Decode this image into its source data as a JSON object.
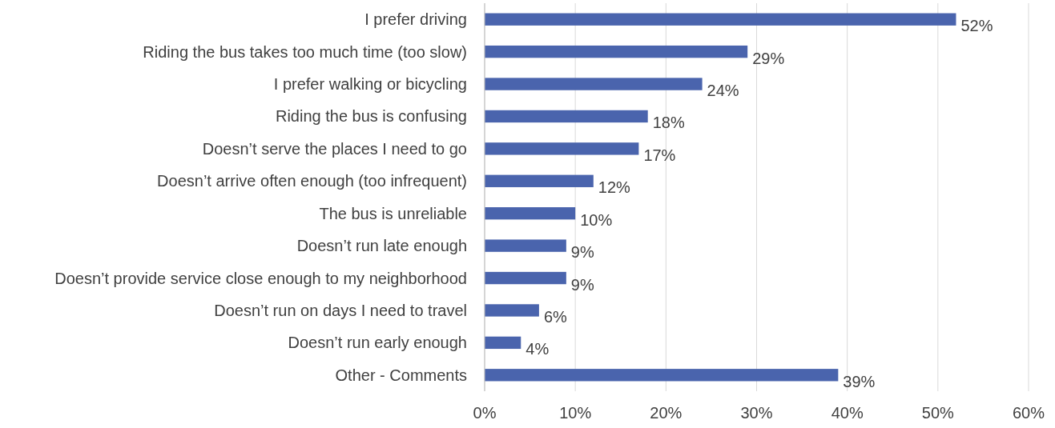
{
  "chart_data": {
    "type": "bar",
    "orientation": "horizontal",
    "categories": [
      "I prefer driving",
      "Riding the bus takes too much time (too slow)",
      "I prefer walking or bicycling",
      "Riding the bus is confusing",
      "Doesn’t serve the places I need to go",
      "Doesn’t arrive often enough (too infrequent)",
      "The bus is unreliable",
      "Doesn’t run late enough",
      "Doesn’t provide service close enough to my neighborhood",
      "Doesn’t run on days I need to travel",
      "Doesn’t run early enough",
      "Other - Comments"
    ],
    "values": [
      52,
      29,
      24,
      18,
      17,
      12,
      10,
      9,
      9,
      6,
      4,
      39
    ],
    "value_labels": [
      "52%",
      "29%",
      "24%",
      "18%",
      "17%",
      "12%",
      "10%",
      "9%",
      "9%",
      "6%",
      "4%",
      "39%"
    ],
    "color": "#4a64ad",
    "xlim": [
      0,
      60
    ],
    "xticks": [
      {
        "value": 0,
        "label": "0%"
      },
      {
        "value": 10,
        "label": "10%"
      },
      {
        "value": 20,
        "label": "20%"
      },
      {
        "value": 30,
        "label": "30%"
      },
      {
        "value": 40,
        "label": "40%"
      },
      {
        "value": 50,
        "label": "50%"
      },
      {
        "value": 60,
        "label": "60%"
      }
    ],
    "grid": "x"
  }
}
